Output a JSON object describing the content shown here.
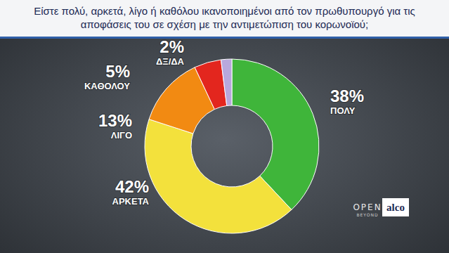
{
  "chart_data": {
    "type": "pie",
    "title": "Είστε πολύ, αρκετά, λίγο ή καθόλου ικανοποιημένοι από τον πρωθυπουργό για τις αποφάσεις του σε σχέση με την αντιμετώπιση του κορωνοϊού;",
    "categories": [
      "ΠΟΛΥ",
      "ΑΡΚΕΤΑ",
      "ΛΙΓΟ",
      "ΚΑΘΟΛΟΥ",
      "ΔΞ/ΔΑ"
    ],
    "values": [
      38,
      42,
      13,
      5,
      2
    ],
    "value_labels": [
      "38%",
      "42%",
      "13%",
      "5%",
      "2%"
    ],
    "colors": [
      "#3fb53a",
      "#f3e13c",
      "#f28a12",
      "#e3261e",
      "#b8a8dc"
    ],
    "data_labels": true,
    "annotations": [
      "OPEN",
      "BEYOND",
      "alco"
    ]
  }
}
